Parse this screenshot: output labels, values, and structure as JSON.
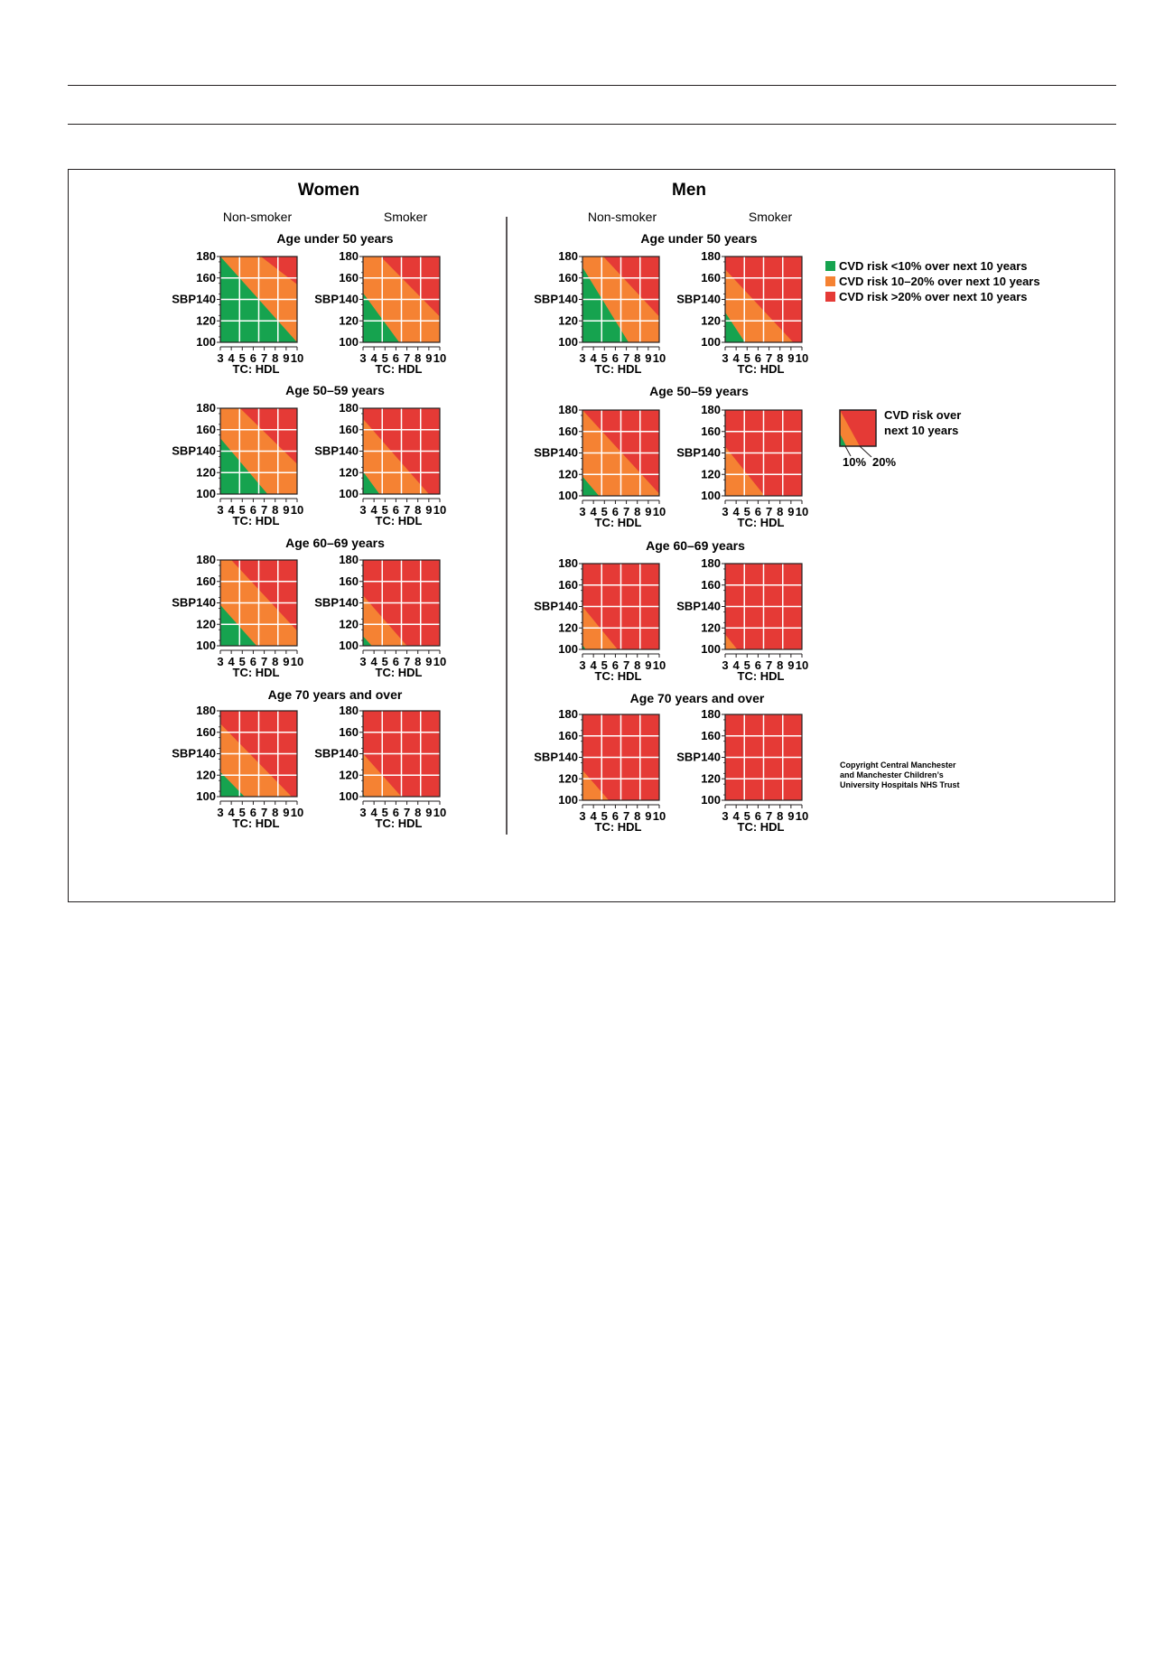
{
  "colors": {
    "low": "#16a34f",
    "mid": "#f58233",
    "high": "#e53a36",
    "grid": "#ffffff",
    "ink": "#231f20"
  },
  "figure": {
    "sections": [
      {
        "title": "Women",
        "columns": [
          "Non-smoker",
          "Smoker"
        ]
      },
      {
        "title": "Men",
        "columns": [
          "Non-smoker",
          "Smoker"
        ]
      }
    ],
    "age_labels": [
      "Age under 50 years",
      "Age 50–59 years",
      "Age 60–69 years",
      "Age 70 years and over"
    ],
    "axis": {
      "y_label": "SBP",
      "x_label": "TC: HDL",
      "y_ticks": [
        "180",
        "160",
        "140",
        "120",
        "100"
      ],
      "x_ticks": [
        "3",
        "4",
        "5",
        "6",
        "7",
        "8",
        "9",
        "10"
      ]
    },
    "legend": {
      "items": [
        {
          "label": "CVD risk <10% over next 10 years",
          "color": "low"
        },
        {
          "label": "CVD risk 10–20% over next 10 years",
          "color": "mid"
        },
        {
          "label": "CVD risk >20% over next 10 years",
          "color": "high"
        }
      ],
      "key_label_1": "CVD risk over",
      "key_label_2": "next 10 years",
      "key_10": "10%",
      "key_20": "20%"
    },
    "copyright": [
      "Copyright Central Manchester",
      "and Manchester Children’s",
      "University Hospitals NHS Trust"
    ]
  },
  "chart_data": {
    "type": "heatmap",
    "x": {
      "label": "TC: HDL",
      "range": [
        3,
        10
      ]
    },
    "y": {
      "label": "SBP",
      "range": [
        100,
        180
      ]
    },
    "categories": [
      "<10%",
      "10–20%",
      ">20%"
    ],
    "panels": [
      {
        "sex": "Women",
        "smoking": "Non-smoker",
        "age": "Age under 50 years",
        "boundary_10": [
          [
            3,
            180
          ],
          [
            10,
            100
          ]
        ],
        "boundary_20": [
          [
            6.7,
            180
          ],
          [
            10,
            154
          ]
        ]
      },
      {
        "sex": "Women",
        "smoking": "Smoker",
        "age": "Age under 50 years",
        "boundary_10": [
          [
            3,
            146
          ],
          [
            6.3,
            100
          ]
        ],
        "boundary_20": [
          [
            4.6,
            180
          ],
          [
            10,
            124
          ]
        ]
      },
      {
        "sex": "Women",
        "smoking": "Non-smoker",
        "age": "Age 50–59 years",
        "boundary_10": [
          [
            3,
            152
          ],
          [
            7.3,
            100
          ]
        ],
        "boundary_20": [
          [
            4.8,
            180
          ],
          [
            10,
            128
          ]
        ]
      },
      {
        "sex": "Women",
        "smoking": "Smoker",
        "age": "Age 50–59 years",
        "boundary_10": [
          [
            3,
            121
          ],
          [
            4.5,
            100
          ]
        ],
        "boundary_20": [
          [
            3,
            170
          ],
          [
            9,
            100
          ]
        ]
      },
      {
        "sex": "Women",
        "smoking": "Non-smoker",
        "age": "Age 60–69 years",
        "boundary_10": [
          [
            3,
            138
          ],
          [
            6.3,
            100
          ]
        ],
        "boundary_20": [
          [
            4,
            180
          ],
          [
            10,
            114
          ]
        ]
      },
      {
        "sex": "Women",
        "smoking": "Smoker",
        "age": "Age 60–69 years",
        "boundary_10": [
          [
            3,
            109
          ],
          [
            3.8,
            100
          ]
        ],
        "boundary_20": [
          [
            3,
            147
          ],
          [
            7,
            100
          ]
        ]
      },
      {
        "sex": "Women",
        "smoking": "Non-smoker",
        "age": "Age 70 years and over",
        "boundary_10": [
          [
            3,
            123
          ],
          [
            5.2,
            100
          ]
        ],
        "boundary_20": [
          [
            3,
            168
          ],
          [
            9.5,
            100
          ]
        ]
      },
      {
        "sex": "Women",
        "smoking": "Smoker",
        "age": "Age 70 years and over",
        "boundary_10": [
          [
            3,
            102
          ],
          [
            3.2,
            100
          ]
        ],
        "boundary_20": [
          [
            3,
            140
          ],
          [
            6.5,
            100
          ]
        ]
      },
      {
        "sex": "Men",
        "smoking": "Non-smoker",
        "age": "Age under 50 years",
        "boundary_10": [
          [
            3,
            170
          ],
          [
            7.2,
            100
          ]
        ],
        "boundary_20": [
          [
            4.9,
            180
          ],
          [
            10,
            124
          ]
        ]
      },
      {
        "sex": "Men",
        "smoking": "Smoker",
        "age": "Age under 50 years",
        "boundary_10": [
          [
            3,
            128
          ],
          [
            4.8,
            100
          ]
        ],
        "boundary_20": [
          [
            3,
            168
          ],
          [
            9.2,
            100
          ]
        ]
      },
      {
        "sex": "Men",
        "smoking": "Non-smoker",
        "age": "Age 50–59 years",
        "boundary_10": [
          [
            3,
            118
          ],
          [
            4.5,
            100
          ]
        ],
        "boundary_20": [
          [
            3,
            180
          ],
          [
            10,
            102
          ]
        ]
      },
      {
        "sex": "Men",
        "smoking": "Smoker",
        "age": "Age 50–59 years",
        "boundary_10": [
          [
            3,
            100
          ],
          [
            3,
            100
          ]
        ],
        "boundary_20": [
          [
            3,
            146
          ],
          [
            6.6,
            100
          ]
        ]
      },
      {
        "sex": "Men",
        "smoking": "Non-smoker",
        "age": "Age 60–69 years",
        "boundary_10": [
          [
            3,
            104
          ],
          [
            3.3,
            100
          ]
        ],
        "boundary_20": [
          [
            3,
            140
          ],
          [
            6.2,
            100
          ]
        ]
      },
      {
        "sex": "Men",
        "smoking": "Smoker",
        "age": "Age 60–69 years",
        "boundary_10": [
          [
            3,
            100
          ],
          [
            3,
            100
          ]
        ],
        "boundary_20": [
          [
            3,
            114
          ],
          [
            4.1,
            100
          ]
        ]
      },
      {
        "sex": "Men",
        "smoking": "Non-smoker",
        "age": "Age 70 years and over",
        "boundary_10": [
          [
            3,
            100
          ],
          [
            3,
            100
          ]
        ],
        "boundary_20": [
          [
            3,
            128
          ],
          [
            5.4,
            100
          ]
        ]
      },
      {
        "sex": "Men",
        "smoking": "Smoker",
        "age": "Age 70 years and over",
        "boundary_10": [
          [
            3,
            100
          ],
          [
            3,
            100
          ]
        ],
        "boundary_20": [
          [
            3,
            100
          ],
          [
            3,
            100
          ]
        ]
      }
    ]
  }
}
